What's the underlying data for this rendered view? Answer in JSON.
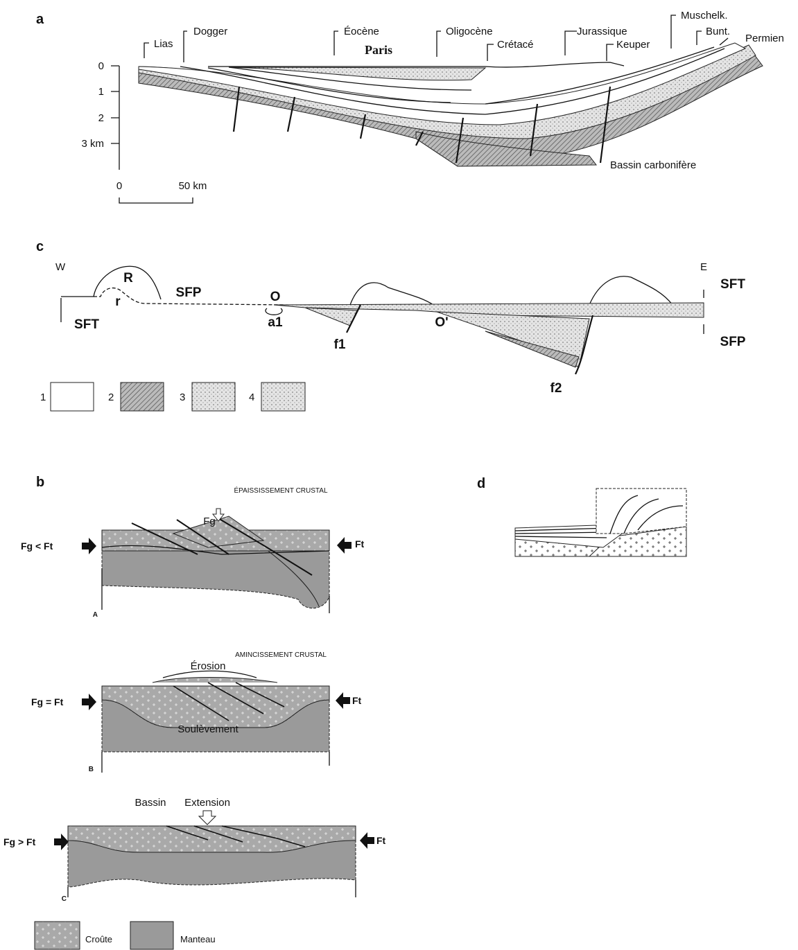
{
  "panel_a": {
    "label": "a",
    "formations": {
      "lias": "Lias",
      "dogger": "Dogger",
      "eocene": "Éocène",
      "oligocene": "Oligocène",
      "cretace": "Crétacé",
      "jurassique": "Jurassique",
      "keuper": "Keuper",
      "muschelk": "Muschelk.",
      "bunt": "Bunt.",
      "permien": "Permien"
    },
    "city": "Paris",
    "depth_ticks": [
      "0",
      "1",
      "2",
      "3 km"
    ],
    "scale": [
      "0",
      "50 km"
    ],
    "basin": "Bassin carbonifère"
  },
  "panel_c": {
    "label": "c",
    "west": "W",
    "east": "E",
    "R": "R",
    "r": "r",
    "sfp_left": "SFP",
    "sft_left": "SFT",
    "O": "O",
    "a1": "a1",
    "f1": "f1",
    "O_prime": "O'",
    "sft_right": "SFT",
    "sfp_right": "SFP",
    "f2": "f2",
    "legend": [
      "1",
      "2",
      "3",
      "4"
    ]
  },
  "panel_b": {
    "label": "b",
    "stages": [
      {
        "title": "ÉPAISSISSEMENT CRUSTAL",
        "force_top": "Fg",
        "force_left": "Fg < Ft",
        "force_right": "Ft",
        "tag": "A"
      },
      {
        "title": "AMINCISSEMENT CRUSTAL",
        "top": "Érosion",
        "force_left": "Fg = Ft",
        "force_right": "Ft",
        "middle": "Soulèvement",
        "tag": "B"
      },
      {
        "annotations": [
          "Bassin",
          "Extension"
        ],
        "force_left": "Fg > Ft",
        "force_right": "Ft",
        "tag": "C"
      }
    ],
    "legend": [
      "Croûte",
      "Manteau"
    ]
  },
  "panel_d": {
    "label": "d"
  }
}
